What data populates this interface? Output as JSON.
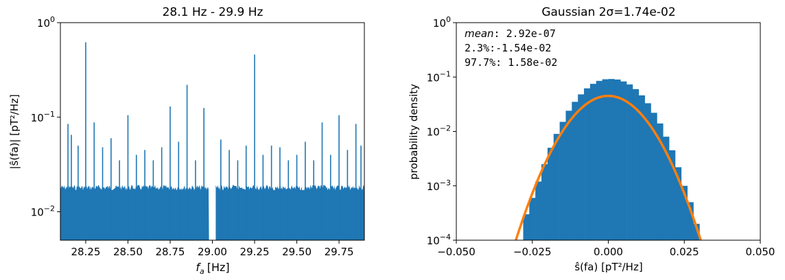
{
  "colors": {
    "bar": "#1f77b4",
    "fit": "#ff7f0e"
  },
  "chart_data": [
    {
      "type": "bar",
      "title": "28.1 Hz - 29.9 Hz",
      "xlabel_main": "f",
      "xlabel_sub": "a",
      "xlabel_unit": "[Hz]",
      "ylabel": "|ŝ(fa)| [pT²/Hz]",
      "xlim": [
        28.1,
        29.9
      ],
      "ylim": [
        0.005,
        1
      ],
      "yscale": "log",
      "xticks": [
        "28.25",
        "28.50",
        "28.75",
        "29.00",
        "29.25",
        "29.50",
        "29.75"
      ],
      "xtick_values": [
        28.25,
        28.5,
        28.75,
        29.0,
        29.25,
        29.5,
        29.75
      ],
      "yticks": [
        {
          "base": "10",
          "exp": "0",
          "value": 1
        },
        {
          "base": "10",
          "exp": "−1",
          "value": 0.1
        },
        {
          "base": "10",
          "exp": "−2",
          "value": 0.01
        }
      ],
      "gap": [
        28.98,
        29.02
      ],
      "noise_floor": 0.018,
      "peaks": [
        {
          "x": 28.145,
          "y": 0.085
        },
        {
          "x": 28.165,
          "y": 0.065
        },
        {
          "x": 28.205,
          "y": 0.05
        },
        {
          "x": 28.25,
          "y": 0.62
        },
        {
          "x": 28.3,
          "y": 0.088
        },
        {
          "x": 28.35,
          "y": 0.048
        },
        {
          "x": 28.4,
          "y": 0.06
        },
        {
          "x": 28.45,
          "y": 0.035
        },
        {
          "x": 28.5,
          "y": 0.105
        },
        {
          "x": 28.55,
          "y": 0.04
        },
        {
          "x": 28.6,
          "y": 0.045
        },
        {
          "x": 28.65,
          "y": 0.035
        },
        {
          "x": 28.7,
          "y": 0.048
        },
        {
          "x": 28.75,
          "y": 0.13
        },
        {
          "x": 28.8,
          "y": 0.055
        },
        {
          "x": 28.85,
          "y": 0.22
        },
        {
          "x": 28.9,
          "y": 0.035
        },
        {
          "x": 28.95,
          "y": 0.125
        },
        {
          "x": 29.05,
          "y": 0.058
        },
        {
          "x": 29.1,
          "y": 0.045
        },
        {
          "x": 29.15,
          "y": 0.035
        },
        {
          "x": 29.2,
          "y": 0.05
        },
        {
          "x": 29.25,
          "y": 0.46
        },
        {
          "x": 29.3,
          "y": 0.04
        },
        {
          "x": 29.35,
          "y": 0.05
        },
        {
          "x": 29.4,
          "y": 0.048
        },
        {
          "x": 29.45,
          "y": 0.035
        },
        {
          "x": 29.5,
          "y": 0.04
        },
        {
          "x": 29.55,
          "y": 0.055
        },
        {
          "x": 29.6,
          "y": 0.035
        },
        {
          "x": 29.65,
          "y": 0.088
        },
        {
          "x": 29.7,
          "y": 0.04
        },
        {
          "x": 29.75,
          "y": 0.105
        },
        {
          "x": 29.8,
          "y": 0.045
        },
        {
          "x": 29.85,
          "y": 0.085
        },
        {
          "x": 29.88,
          "y": 0.05
        }
      ]
    },
    {
      "type": "bar",
      "title": "Gaussian 2σ=1.74e-02",
      "xlabel": "ŝ(fa) [pT²/Hz]",
      "ylabel": "probability density",
      "xlim": [
        -0.05,
        0.05
      ],
      "ylim": [
        0.0001,
        1
      ],
      "yscale": "log",
      "xticks": [
        "−0.050",
        "−0.025",
        "0.000",
        "0.025",
        "0.050"
      ],
      "xtick_values": [
        -0.05,
        -0.025,
        0.0,
        0.025,
        0.05
      ],
      "yticks": [
        {
          "base": "10",
          "exp": "0",
          "value": 1
        },
        {
          "base": "10",
          "exp": "−1",
          "value": 0.1
        },
        {
          "base": "10",
          "exp": "−2",
          "value": 0.01
        },
        {
          "base": "10",
          "exp": "−3",
          "value": 0.001
        },
        {
          "base": "10",
          "exp": "−4",
          "value": 0.0001
        }
      ],
      "annotation": {
        "mean_label": "mean",
        "mean_value": ": 2.92e-07",
        "line2": "2.3%:-1.54e-02",
        "line3": "97.7%: 1.58e-02"
      },
      "histogram": {
        "bin_start": -0.03,
        "bin_width": 0.002,
        "values": [
          0.0001,
          0.0003,
          0.0006,
          0.0012,
          0.0025,
          0.005,
          0.009,
          0.015,
          0.024,
          0.035,
          0.048,
          0.062,
          0.075,
          0.085,
          0.091,
          0.092,
          0.09,
          0.083,
          0.073,
          0.06,
          0.046,
          0.033,
          0.022,
          0.014,
          0.008,
          0.0045,
          0.0022,
          0.001,
          0.0005,
          0.0002
        ]
      },
      "fit": {
        "type": "gaussian",
        "peak": 0.045,
        "sigma": 0.0087,
        "mean": 0.0
      }
    }
  ]
}
